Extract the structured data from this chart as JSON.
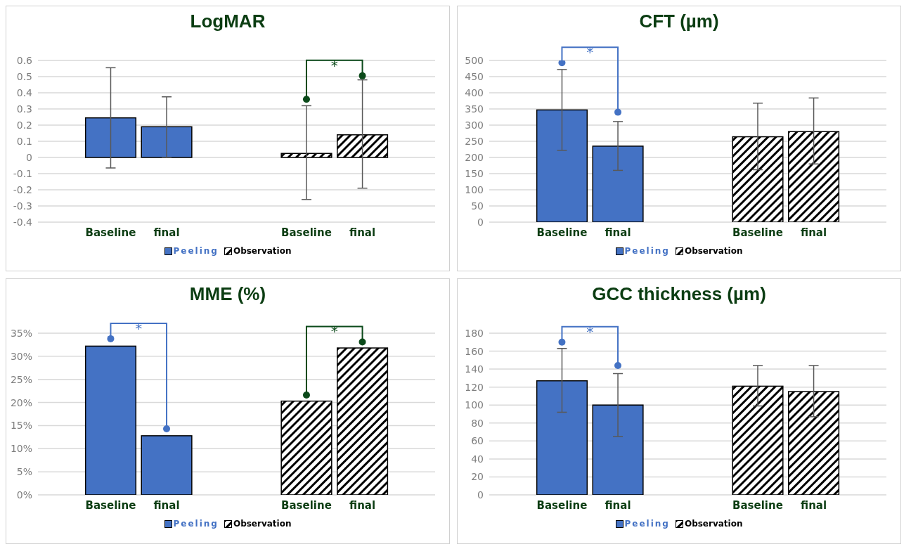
{
  "chart_data": [
    {
      "type": "bar",
      "title": "LogMAR",
      "categories": [
        "Baseline",
        "final",
        "Baseline",
        "final"
      ],
      "ylim": [
        -0.4,
        0.6
      ],
      "yticks": [
        -0.4,
        -0.3,
        -0.2,
        -0.1,
        0,
        0.1,
        0.2,
        0.3,
        0.4,
        0.5,
        0.6
      ],
      "grid": "y",
      "legend": "bottom",
      "marker": "circle",
      "annotations": [
        "*"
      ],
      "series": [
        {
          "name": "Peeling",
          "color": "#4472c4",
          "values": [
            0.245,
            0.19,
            null,
            null
          ],
          "errors": [
            [
              -0.065,
              0.555
            ],
            [
              0.0,
              0.375
            ],
            null,
            null
          ]
        },
        {
          "name": "Observation",
          "color": "#000000",
          "values": [
            null,
            null,
            0.025,
            0.14
          ],
          "errors": [
            null,
            null,
            [
              -0.26,
              0.32
            ],
            [
              -0.19,
              0.48
            ]
          ]
        },
        {
          "type": "scatter",
          "color": "#0b4a1a",
          "values": [
            null,
            null,
            0.36,
            0.505
          ]
        }
      ]
    },
    {
      "type": "bar",
      "title": "CFT (µm)",
      "categories": [
        "Baseline",
        "final",
        "Baseline",
        "final"
      ],
      "ylim": [
        0,
        500
      ],
      "yticks": [
        0,
        50,
        100,
        150,
        200,
        250,
        300,
        350,
        400,
        450,
        500
      ],
      "grid": "y",
      "legend": "bottom",
      "marker": "circle",
      "annotations": [
        "*"
      ],
      "series": [
        {
          "name": "Peeling",
          "color": "#4472c4",
          "values": [
            347,
            235,
            null,
            null
          ],
          "errors": [
            [
              222,
              472
            ],
            [
              160,
              311
            ],
            null,
            null
          ]
        },
        {
          "name": "Observation",
          "color": "#000000",
          "values": [
            null,
            null,
            264,
            280
          ],
          "errors": [
            null,
            null,
            [
              162,
              368
            ],
            [
              180,
              384
            ]
          ]
        },
        {
          "type": "scatter",
          "color": "#4472c4",
          "values": [
            493,
            340,
            null,
            null
          ]
        }
      ]
    },
    {
      "type": "bar",
      "title": "MME (%)",
      "categories": [
        "Baseline",
        "final",
        "Baseline",
        "final"
      ],
      "ylim": [
        0,
        35
      ],
      "yticks": [
        {
          "value": 0,
          "label": "0%"
        },
        {
          "value": 5,
          "label": "5%"
        },
        {
          "value": 10,
          "label": "10%"
        },
        {
          "value": 15,
          "label": "15%"
        },
        {
          "value": 20,
          "label": "20%"
        },
        {
          "value": 25,
          "label": "25%"
        },
        {
          "value": 30,
          "label": "30%"
        },
        {
          "value": 35,
          "label": "35%"
        }
      ],
      "grid": "y",
      "legend": "bottom",
      "marker": "circle",
      "annotations": [
        "*",
        "*"
      ],
      "series": [
        {
          "name": "Peeling",
          "color": "#4472c4",
          "values": [
            32.2,
            12.8,
            null,
            null
          ]
        },
        {
          "name": "Observation",
          "color": "#000000",
          "values": [
            null,
            null,
            20.3,
            31.8
          ]
        },
        {
          "type": "scatter",
          "color": "#4472c4",
          "values": [
            33.8,
            14.3,
            null,
            null
          ]
        },
        {
          "type": "scatter",
          "color": "#0b4a1a",
          "values": [
            null,
            null,
            21.6,
            33.1
          ]
        }
      ]
    },
    {
      "type": "bar",
      "title": "GCC thickness (µm)",
      "categories": [
        "Baseline",
        "final",
        "Baseline",
        "final"
      ],
      "ylim": [
        0,
        180
      ],
      "yticks": [
        0,
        20,
        40,
        60,
        80,
        100,
        120,
        140,
        160,
        180
      ],
      "grid": "y",
      "legend": "bottom",
      "marker": "circle",
      "annotations": [
        "*"
      ],
      "series": [
        {
          "name": "Peeling",
          "color": "#4472c4",
          "values": [
            127,
            100,
            null,
            null
          ],
          "errors": [
            [
              92,
              163
            ],
            [
              65,
              135
            ],
            null,
            null
          ]
        },
        {
          "name": "Observation",
          "color": "#000000",
          "values": [
            null,
            null,
            121,
            115
          ],
          "errors": [
            null,
            null,
            [
              99,
              144
            ],
            [
              87,
              144
            ]
          ]
        },
        {
          "type": "scatter",
          "color": "#4472c4",
          "values": [
            170,
            144,
            null,
            null
          ]
        }
      ]
    }
  ]
}
